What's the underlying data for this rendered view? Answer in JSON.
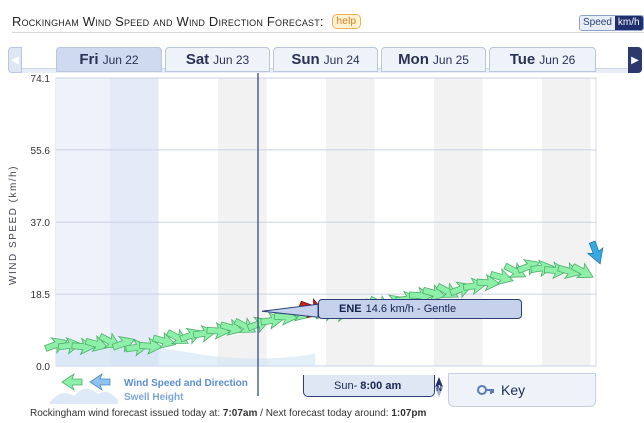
{
  "header": {
    "title": "Rockingham Wind Speed and Wind Direction Forecast:",
    "help_label": "help",
    "unit_label": "Speed",
    "unit_value": "km/h"
  },
  "day_tabs": [
    {
      "day": "Fri",
      "date": "Jun 22",
      "active": true
    },
    {
      "day": "Sat",
      "date": "Jun 23",
      "active": false
    },
    {
      "day": "Sun",
      "date": "Jun 24",
      "active": false
    },
    {
      "day": "Mon",
      "date": "Jun 25",
      "active": false
    },
    {
      "day": "Tue",
      "date": "Jun 26",
      "active": false
    }
  ],
  "colors": {
    "wind_arrow": "#8ef0a8",
    "wind_arrow_stroke": "#4caf6a",
    "swell": "#cfe3f4",
    "selected_arrow": "#c8201a",
    "latest_arrow": "#38a9e0",
    "band_light": "#f2f2f2",
    "band_selected": "#e4eaf8",
    "cursor_line": "#2c3e78"
  },
  "chart_data": {
    "type": "line",
    "title": "Rockingham Wind Speed and Wind Direction Forecast:",
    "ylabel": "WIND SPEED (km/h)",
    "xlabel": "",
    "y_unit": "km/h",
    "yticks": [
      "74.1",
      "55.6",
      "37.0",
      "18.5",
      "0.0"
    ],
    "ylim": [
      0,
      74.1
    ],
    "x_days": [
      "Fri Jun 22",
      "Sat Jun 23",
      "Sun Jun 24",
      "Mon Jun 25",
      "Tue Jun 26"
    ],
    "grid": true,
    "series": [
      {
        "name": "Wind Speed and Direction",
        "x": [
          0.0,
          0.125,
          0.25,
          0.375,
          0.5,
          0.625,
          0.75,
          0.875,
          1.0,
          1.125,
          1.25,
          1.375,
          1.5,
          1.625,
          1.75,
          1.875,
          2.0,
          2.125,
          2.25,
          2.375,
          2.5,
          2.625,
          2.75,
          2.875,
          3.0,
          3.125,
          3.25,
          3.375,
          3.5,
          3.625,
          3.75,
          3.875,
          4.0,
          4.125,
          4.25,
          4.375,
          4.5,
          4.625,
          4.75,
          4.875,
          5.0
        ],
        "values": [
          5.5,
          5.3,
          5.0,
          5.6,
          6.3,
          5.8,
          4.8,
          5.1,
          6.4,
          7.3,
          7.9,
          8.4,
          9.0,
          9.8,
          10.2,
          10.8,
          11.7,
          12.6,
          13.5,
          14.6,
          13.8,
          13.6,
          14.2,
          15.1,
          15.9,
          16.5,
          17.2,
          18.1,
          18.7,
          19.2,
          19.8,
          20.6,
          21.4,
          22.8,
          24.4,
          25.6,
          25.2,
          24.6,
          24.4,
          24.3,
          29.2
        ]
      },
      {
        "name": "Swell Height",
        "x": [],
        "values": []
      }
    ],
    "selected": {
      "time": "Sun - 8:00 am",
      "direction": "ENE",
      "speed": "14.6 km/h",
      "descriptor": "Gentle"
    }
  },
  "callout": {
    "direction": "ENE",
    "text": "14.6 km/h - Gentle"
  },
  "cursor": {
    "day": "Sun",
    "sep": " - ",
    "time": "8:00 am",
    "compass_letter": "N"
  },
  "legend": {
    "line1": "Wind Speed and Direction",
    "line2": "Swell Height"
  },
  "key": {
    "label": "Key"
  },
  "footer": {
    "prefix": "Rockingham wind forecast issued today at:",
    "issued": "7:07am",
    "mid": " / Next forecast today around:",
    "next": "1:07pm"
  }
}
